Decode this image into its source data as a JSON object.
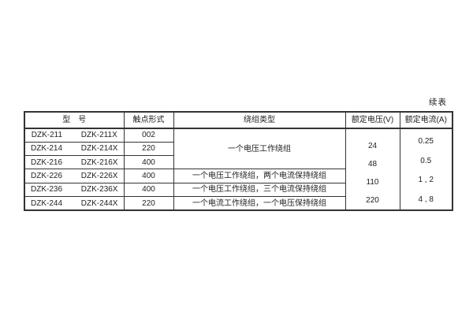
{
  "page": {
    "continued_label": "续表"
  },
  "colors": {
    "border": "#333333",
    "text": "#222222",
    "background": "#ffffff"
  },
  "table": {
    "headers": {
      "model": "型　号",
      "contact": "触点形式",
      "winding": "绕组类型",
      "voltage": "额定电压(V)",
      "current": "额定电流(A)"
    },
    "winding_merged": "一个电压工作绕组",
    "rows": [
      {
        "model": "DZK-211",
        "model_x": "DZK-211X",
        "contact": "002"
      },
      {
        "model": "DZK-214",
        "model_x": "DZK-214X",
        "contact": "220"
      },
      {
        "model": "DZK-216",
        "model_x": "DZK-216X",
        "contact": "400"
      },
      {
        "model": "DZK-226",
        "model_x": "DZK-226X",
        "contact": "400",
        "winding": "一个电压工作绕组，两个电流保持绕组"
      },
      {
        "model": "DZK-236",
        "model_x": "DZK-236X",
        "contact": "400",
        "winding": "一个电压工作绕组，三个电流保持绕组"
      },
      {
        "model": "DZK-244",
        "model_x": "DZK-244X",
        "contact": "220",
        "winding": "一个电流工作绕组，一个电压保持绕组"
      }
    ],
    "voltages": [
      "24",
      "48",
      "110",
      "220"
    ],
    "currents": [
      "0.25",
      "0.5",
      "1 , 2",
      "4 , 8"
    ]
  }
}
